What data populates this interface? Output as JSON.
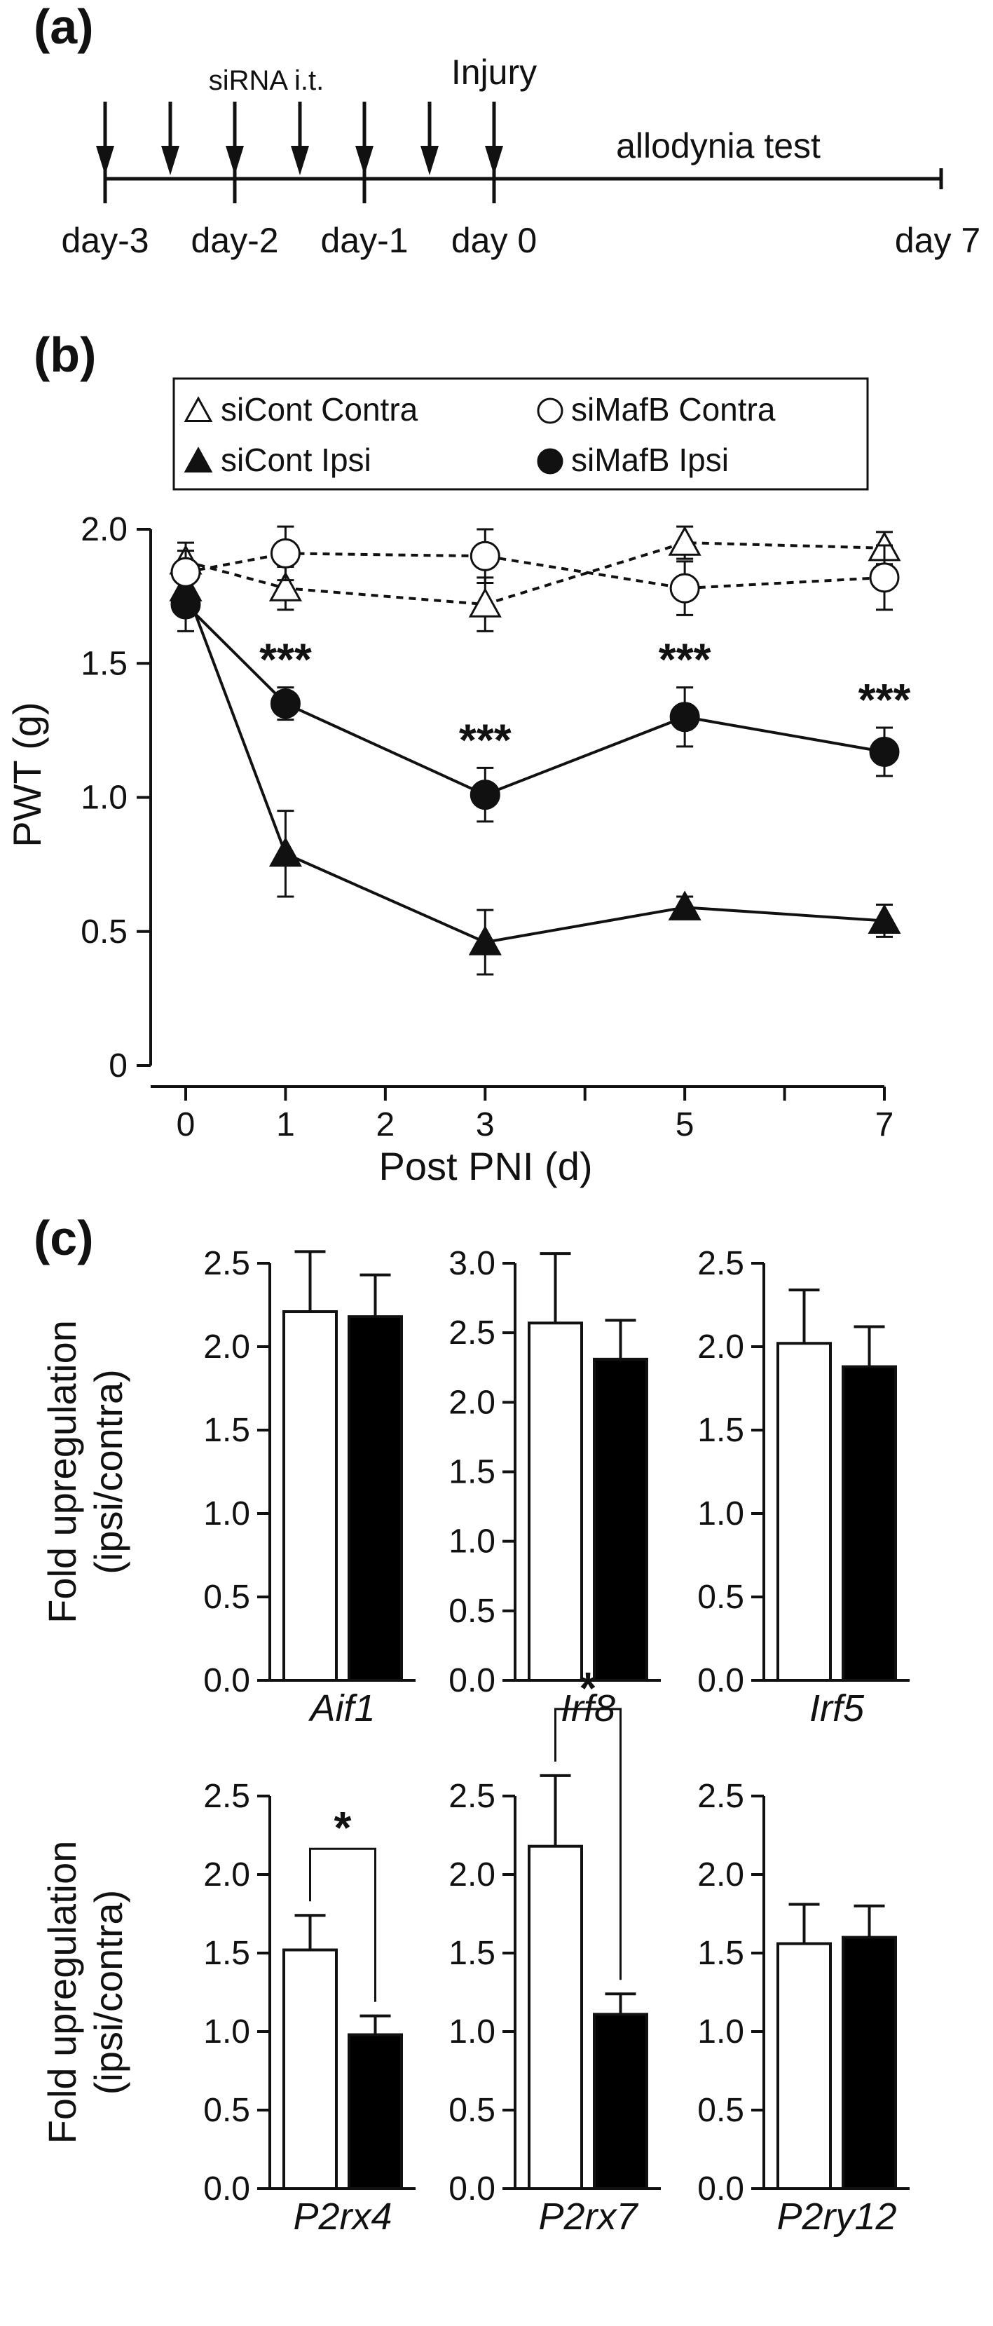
{
  "panels": {
    "a": "(a)",
    "b": "(b)",
    "c": "(c)"
  },
  "timeline": {
    "siRNA_label": "siRNA i.t.",
    "injury_label": "Injury",
    "test_label": "allodynia test",
    "days": [
      "day-3",
      "day-2",
      "day-1",
      "day 0",
      "day 7"
    ]
  },
  "chart_data": [
    {
      "type": "line",
      "ylabel": "PWT (g)",
      "xlabel": "Post PNI (d)",
      "ylim": [
        0,
        2.0
      ],
      "yticks": [
        "0",
        "0.5",
        "1.0",
        "1.5",
        "2.0"
      ],
      "xlim": [
        0,
        7
      ],
      "xticks": [
        "0",
        "1",
        "2",
        "3",
        "5",
        "7"
      ],
      "legend_position": "top",
      "x": [
        0,
        1,
        3,
        5,
        7
      ],
      "series": [
        {
          "name": "siCont Contra",
          "marker": "triangle-open",
          "line": "dashed",
          "values": [
            1.88,
            1.78,
            1.72,
            1.95,
            1.93
          ],
          "errors": [
            0.07,
            0.08,
            0.1,
            0.06,
            0.06
          ]
        },
        {
          "name": "siMafB Contra",
          "marker": "circle-open",
          "line": "dashed",
          "values": [
            1.84,
            1.91,
            1.9,
            1.78,
            1.82
          ],
          "errors": [
            0.08,
            0.1,
            0.1,
            0.1,
            0.12
          ]
        },
        {
          "name": "siCont Ipsi",
          "marker": "triangle-filled",
          "line": "solid",
          "values": [
            1.78,
            0.79,
            0.46,
            0.59,
            0.54
          ],
          "errors": [
            0.06,
            0.16,
            0.12,
            0.04,
            0.06
          ]
        },
        {
          "name": "siMafB Ipsi",
          "marker": "circle-filled",
          "line": "solid",
          "values": [
            1.72,
            1.35,
            1.01,
            1.3,
            1.17
          ],
          "errors": [
            0.1,
            0.06,
            0.1,
            0.11,
            0.09
          ]
        }
      ],
      "annotations": [
        {
          "x": 1,
          "text": "***"
        },
        {
          "x": 3,
          "text": "***"
        },
        {
          "x": 5,
          "text": "***"
        },
        {
          "x": 7,
          "text": "***"
        }
      ]
    },
    {
      "type": "bar",
      "ylabel": "Fold upregulation\n(ipsi/contra)",
      "series_colors": [
        "#ffffff",
        "#000000"
      ],
      "rows": [
        [
          {
            "gene": "Aif1",
            "ylim": [
              0,
              2.5
            ],
            "yticks": [
              "0.0",
              "0.5",
              "1.0",
              "1.5",
              "2.0",
              "2.5"
            ],
            "values": [
              2.21,
              2.18
            ],
            "errors": [
              0.36,
              0.25
            ]
          },
          {
            "gene": "Irf8",
            "ylim": [
              0,
              3.0
            ],
            "yticks": [
              "0.0",
              "0.5",
              "1.0",
              "1.5",
              "2.0",
              "2.5",
              "3.0"
            ],
            "values": [
              2.57,
              2.31
            ],
            "errors": [
              0.5,
              0.28
            ]
          },
          {
            "gene": "Irf5",
            "ylim": [
              0,
              2.5
            ],
            "yticks": [
              "0.0",
              "0.5",
              "1.0",
              "1.5",
              "2.0",
              "2.5"
            ],
            "values": [
              2.02,
              1.88
            ],
            "errors": [
              0.32,
              0.24
            ]
          }
        ],
        [
          {
            "gene": "P2rx4",
            "ylim": [
              0,
              2.5
            ],
            "yticks": [
              "0.0",
              "0.5",
              "1.0",
              "1.5",
              "2.0",
              "2.5"
            ],
            "values": [
              1.52,
              0.98
            ],
            "errors": [
              0.22,
              0.12
            ],
            "significance": "*"
          },
          {
            "gene": "P2rx7",
            "ylim": [
              0,
              2.5
            ],
            "yticks": [
              "0.0",
              "0.5",
              "1.0",
              "1.5",
              "2.0",
              "2.5"
            ],
            "values": [
              2.18,
              1.11
            ],
            "errors": [
              0.45,
              0.13
            ],
            "significance": "*"
          },
          {
            "gene": "P2ry12",
            "ylim": [
              0,
              2.5
            ],
            "yticks": [
              "0.0",
              "0.5",
              "1.0",
              "1.5",
              "2.0",
              "2.5"
            ],
            "values": [
              1.56,
              1.6
            ],
            "errors": [
              0.25,
              0.2
            ]
          }
        ]
      ]
    }
  ]
}
